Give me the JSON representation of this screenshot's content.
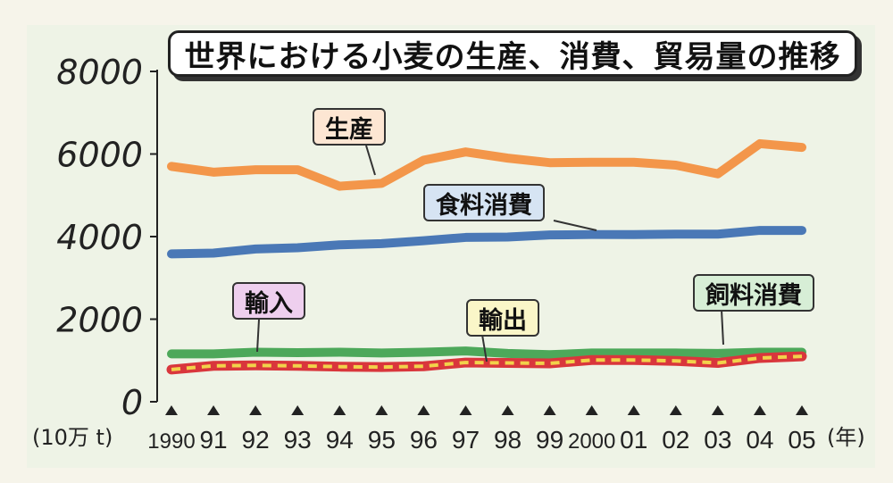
{
  "chart_data": {
    "type": "line",
    "title": "世界における小麦の生産、消費、貿易量の推移",
    "unit_label": "(10万 t)",
    "year_unit_label": "(年)",
    "x": [
      "1990",
      "91",
      "92",
      "93",
      "94",
      "95",
      "96",
      "97",
      "98",
      "99",
      "2000",
      "01",
      "02",
      "03",
      "04",
      "05"
    ],
    "yticks": [
      "0",
      "2000",
      "4000",
      "6000",
      "8000"
    ],
    "ylim": [
      0,
      8000
    ],
    "grid": false,
    "series": [
      {
        "name": "生産",
        "color": "#f3964a",
        "values": [
          5700,
          5560,
          5620,
          5620,
          5220,
          5290,
          5850,
          6050,
          5900,
          5790,
          5800,
          5800,
          5730,
          5520,
          6250,
          6160
        ]
      },
      {
        "name": "食料消費",
        "color": "#4a78b6",
        "values": [
          3580,
          3600,
          3700,
          3730,
          3800,
          3830,
          3900,
          3980,
          3990,
          4040,
          4050,
          4050,
          4060,
          4060,
          4150,
          4150
        ]
      },
      {
        "name": "飼料消費",
        "color": "#4da85a",
        "values": [
          1160,
          1160,
          1200,
          1190,
          1200,
          1180,
          1200,
          1230,
          1170,
          1140,
          1180,
          1180,
          1180,
          1170,
          1200,
          1200
        ]
      },
      {
        "name": "輸入",
        "color": "#d9363c",
        "values": [
          780,
          870,
          880,
          870,
          850,
          840,
          860,
          950,
          940,
          930,
          1010,
          1010,
          990,
          940,
          1060,
          1100
        ]
      },
      {
        "name": "輸出",
        "color": "#f2d24a",
        "values": [
          780,
          870,
          880,
          870,
          850,
          840,
          860,
          950,
          940,
          930,
          1010,
          1010,
          990,
          940,
          1060,
          1100
        ]
      }
    ]
  },
  "colors": {
    "background": "#f6f4ea",
    "axis": "#222222",
    "label_production": "#fde6d3",
    "label_food": "#d6e4f3",
    "label_feed": "#d7eed6",
    "label_import": "#eecfee",
    "label_export": "#faf6c8"
  }
}
